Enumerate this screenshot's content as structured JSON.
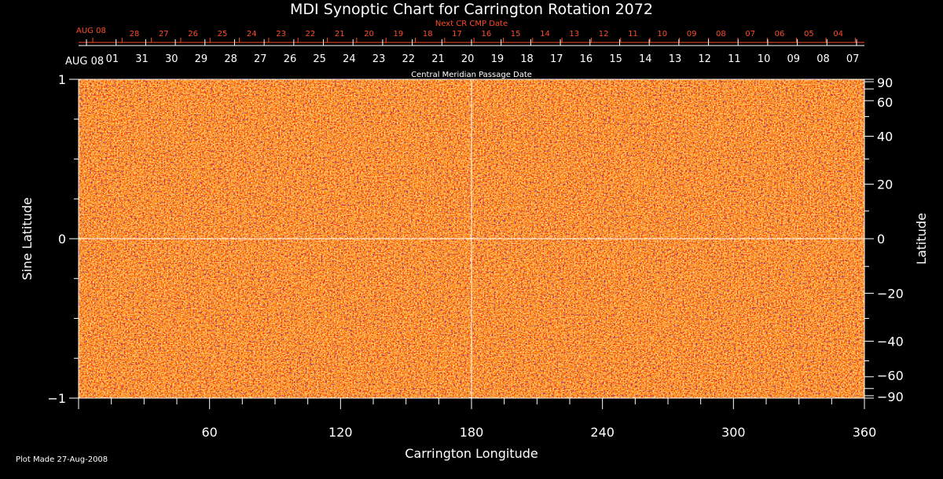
{
  "chart_data": {
    "type": "heatmap",
    "title": "MDI Synoptic Chart for Carrington Rotation 2072",
    "xlabel": "Carrington Longitude",
    "ylabel_left": "Sine Latitude",
    "ylabel_right": "Latitude",
    "x_range": [
      0,
      360
    ],
    "y_range": [
      -1,
      1
    ],
    "x_ticks": [
      60,
      120,
      180,
      240,
      300,
      360
    ],
    "y_ticks_left": [
      {
        "value": 1,
        "label": "1"
      },
      {
        "value": 0,
        "label": "0"
      },
      {
        "value": -1,
        "label": "−1"
      }
    ],
    "y_ticks_right": [
      {
        "deg": 90,
        "label": "90"
      },
      {
        "deg": 60,
        "label": "60"
      },
      {
        "deg": 40,
        "label": "40"
      },
      {
        "deg": 20,
        "label": "20"
      },
      {
        "deg": 0,
        "label": "0"
      },
      {
        "deg": -20,
        "label": "−20"
      },
      {
        "deg": -40,
        "label": "−40"
      },
      {
        "deg": -60,
        "label": "−60"
      },
      {
        "deg": -90,
        "label": "−90"
      }
    ],
    "top_axis_label": "Central Meridian Passage Date",
    "top_axis_start": "AUG 08",
    "top_axis_dates": [
      "01",
      "31",
      "30",
      "29",
      "28",
      "27",
      "26",
      "25",
      "24",
      "23",
      "22",
      "21",
      "20",
      "19",
      "18",
      "17",
      "16",
      "15",
      "14",
      "13",
      "12",
      "11",
      "10",
      "09",
      "08",
      "07"
    ],
    "next_cr_label": "Next CR CMP Date",
    "next_cr_start": "AUG 08",
    "next_cr_dates": [
      "28",
      "27",
      "26",
      "25",
      "24",
      "23",
      "22",
      "21",
      "20",
      "19",
      "18",
      "17",
      "16",
      "15",
      "14",
      "13",
      "12",
      "11",
      "10",
      "09",
      "08",
      "07",
      "06",
      "05",
      "04"
    ],
    "guide_lines": {
      "longitude": 180,
      "sine_latitude": 0
    },
    "colors": {
      "background": "#000000",
      "map_base": "#ff5a12",
      "map_highlight": "#ffd04a",
      "map_dark": "#5a0a2a",
      "accent_text": "#ff4a2a",
      "axis": "#ffffff"
    }
  },
  "footnote": "Plot Made 27-Aug-2008"
}
